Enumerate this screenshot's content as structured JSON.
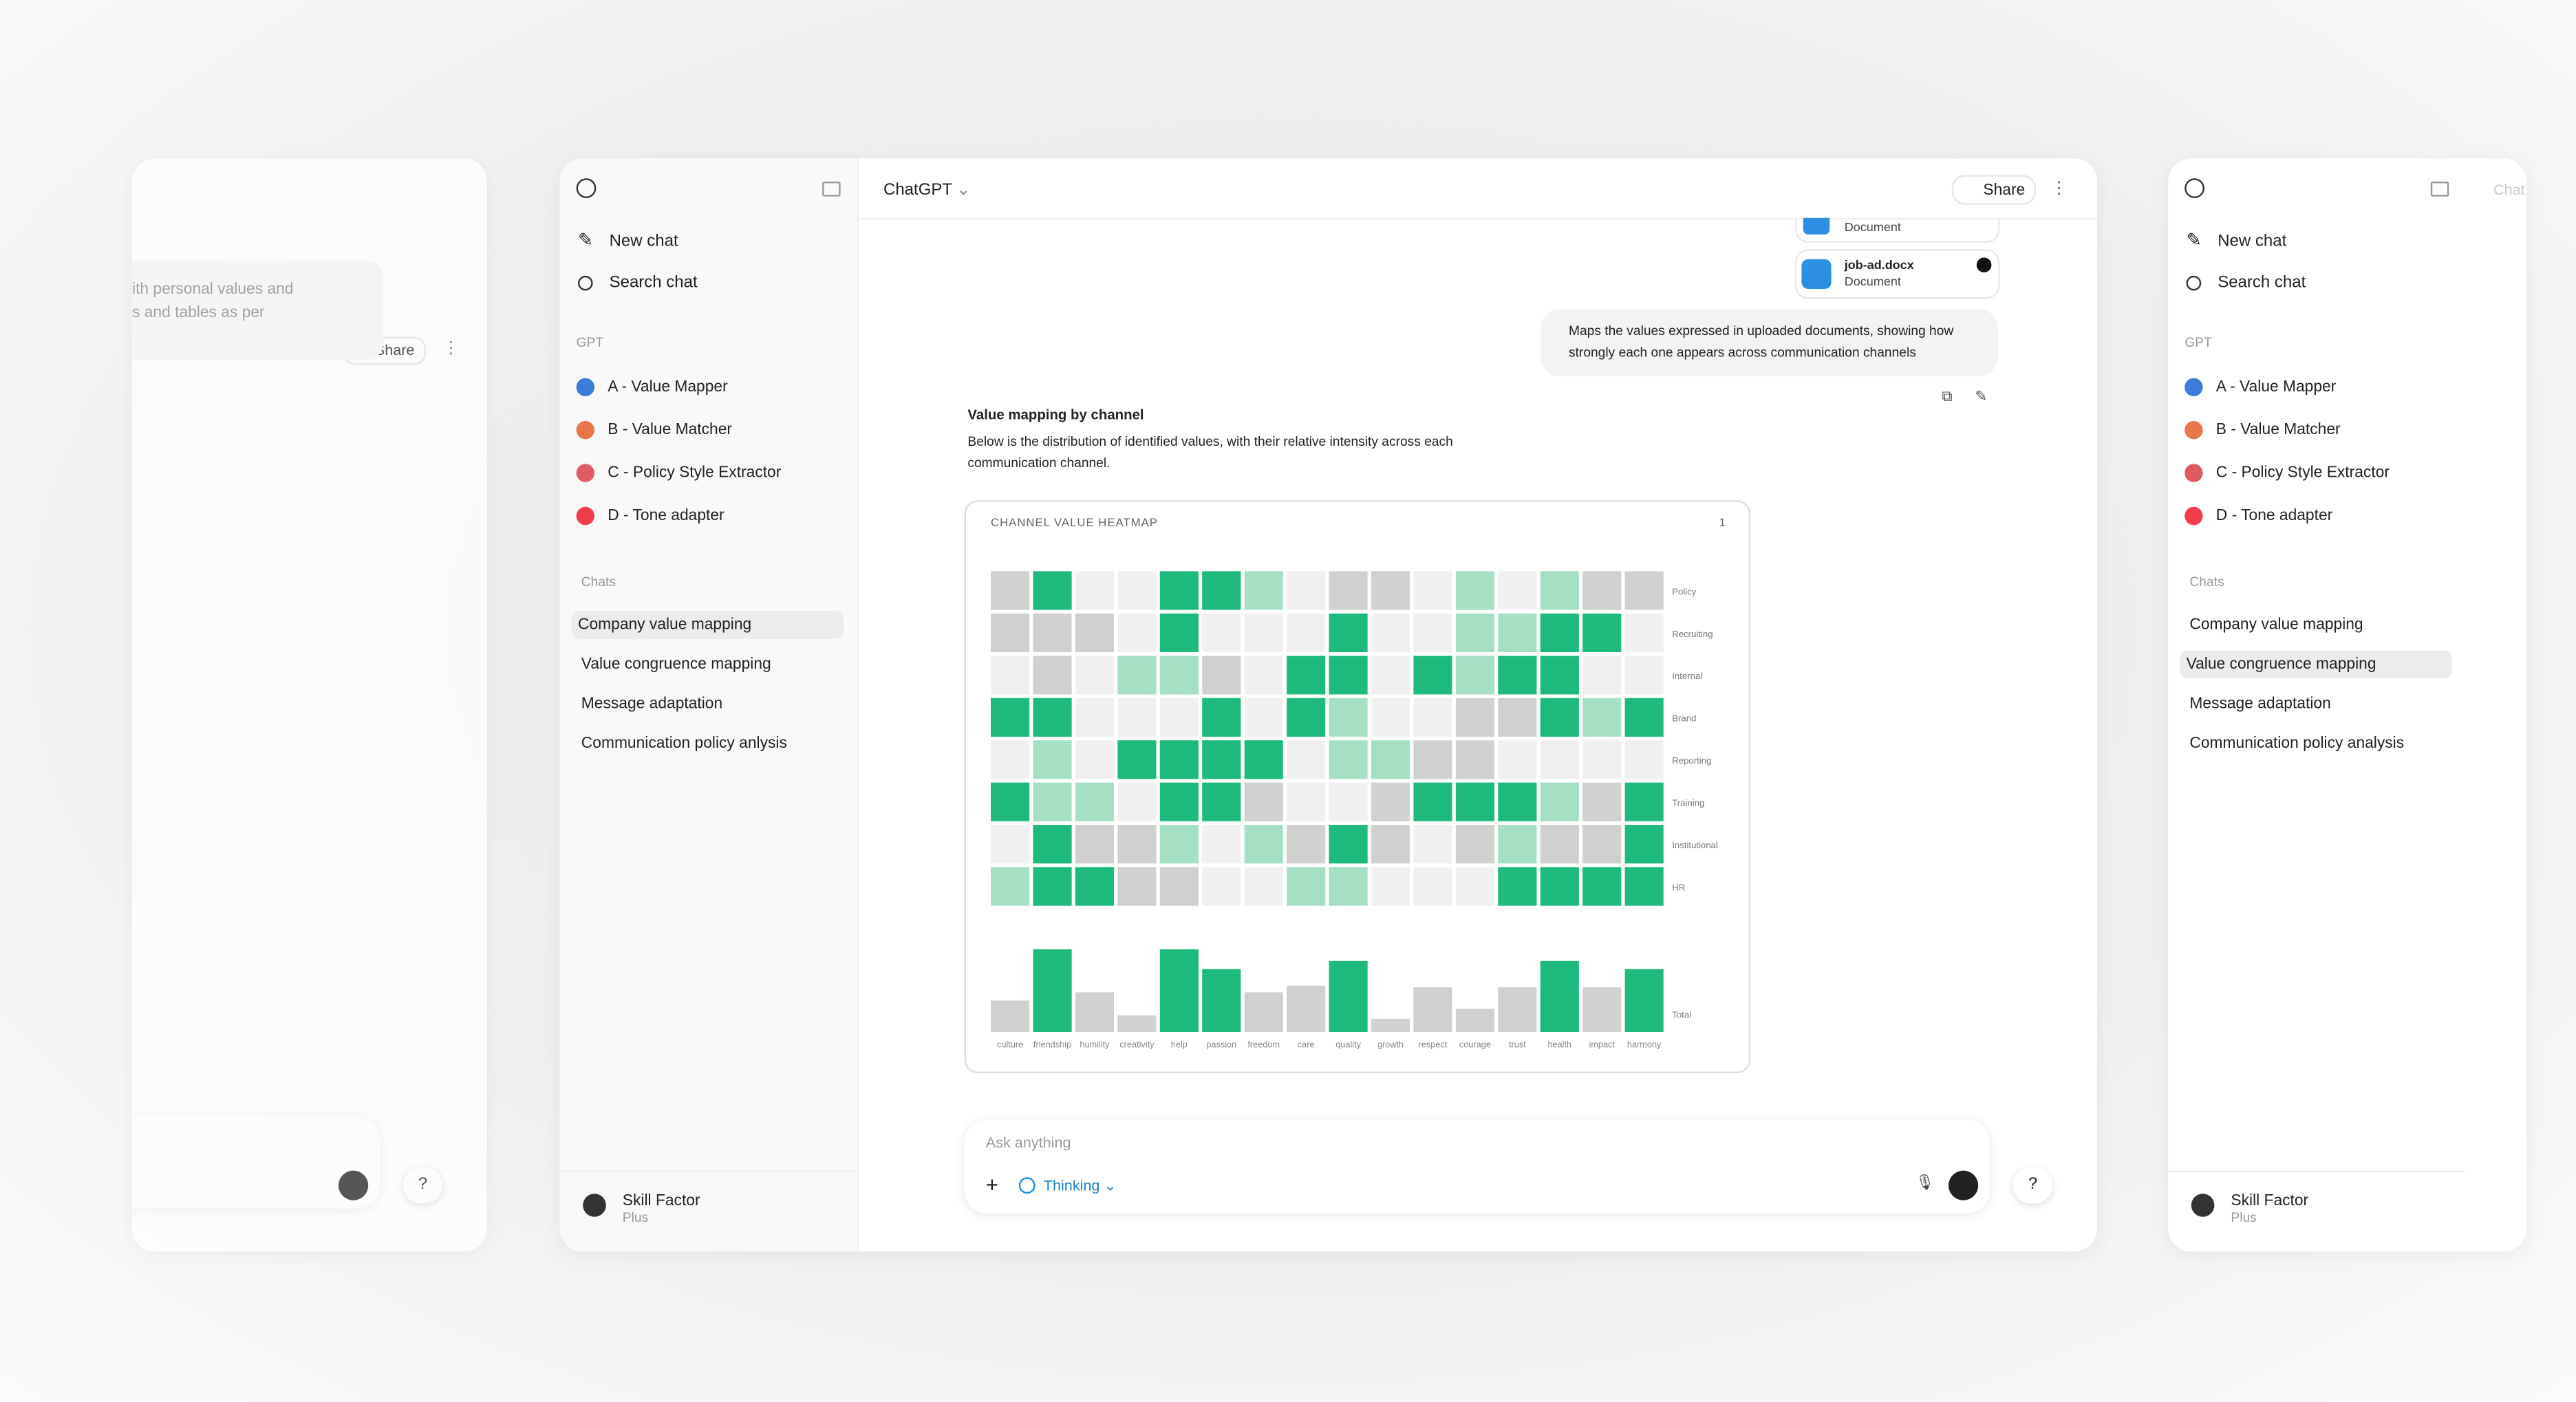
{
  "left_window": {
    "share": "Share",
    "message_lines": [
      "ith personal values and",
      "s and tables as per"
    ],
    "help": "?"
  },
  "main_window": {
    "sidebar": {
      "new_chat": "New chat",
      "search_chat": "Search chat",
      "gpt_heading": "GPT",
      "gpts": [
        {
          "name": "A - Value Mapper",
          "color": "#3b7bd9"
        },
        {
          "name": "B - Value Matcher",
          "color": "#e8764a"
        },
        {
          "name": "C - Policy Style Extractor",
          "color": "#e05a63"
        },
        {
          "name": "D - Tone adapter",
          "color": "#ef3e4a"
        }
      ],
      "chats_heading": "Chats",
      "chats": [
        "Company value mapping",
        "Value congruence mapping",
        "Message adaptation",
        "Communication policy anlysis"
      ],
      "active_chat": 0,
      "user": {
        "name": "Skill Factor",
        "plan": "Plus"
      }
    },
    "header": {
      "model": "ChatGPT",
      "share": "Share"
    },
    "attachments": [
      {
        "type": "Document"
      },
      {
        "name": "job-ad.docx",
        "type": "Document"
      }
    ],
    "user_message": "Maps the values expressed in uploaded documents, showing how strongly each one appears across communication channels",
    "response": {
      "title": "Value mapping by channel",
      "text": "Below is the distribution of identified values, with their relative intensity across each communication channel."
    },
    "chart": {
      "title": "CHANNEL VALUE HEATMAP",
      "badge": "1",
      "rows": [
        "Policy",
        "Recruiting",
        "Internal",
        "Brand",
        "Reporting",
        "Training",
        "Institutional",
        "HR"
      ],
      "columns": [
        "culture",
        "friendship",
        "humility",
        "creativity",
        "help",
        "passion",
        "freedom",
        "care",
        "quality",
        "growth",
        "respect",
        "courage",
        "trust",
        "health",
        "impact",
        "harmony"
      ],
      "level_colors": [
        "#f0f0f0",
        "#cfd1cf",
        "#a5e0c5",
        "#1db97d"
      ],
      "cells": [
        [
          1,
          3,
          0,
          0,
          3,
          3,
          2,
          0,
          1,
          1,
          0,
          2,
          0,
          2,
          1,
          1
        ],
        [
          1,
          1,
          1,
          0,
          3,
          0,
          0,
          0,
          3,
          0,
          0,
          2,
          2,
          3,
          3,
          0
        ],
        [
          0,
          1,
          0,
          2,
          2,
          1,
          0,
          3,
          3,
          0,
          3,
          2,
          3,
          3,
          0,
          0
        ],
        [
          3,
          3,
          0,
          0,
          0,
          3,
          0,
          3,
          2,
          0,
          0,
          1,
          1,
          3,
          2,
          3
        ],
        [
          0,
          2,
          0,
          3,
          3,
          3,
          3,
          0,
          2,
          2,
          1,
          1,
          0,
          0,
          0,
          0
        ],
        [
          3,
          2,
          2,
          0,
          3,
          3,
          1,
          0,
          0,
          1,
          3,
          3,
          3,
          2,
          1,
          3
        ],
        [
          0,
          3,
          1,
          1,
          2,
          0,
          2,
          1,
          3,
          1,
          0,
          1,
          2,
          1,
          1,
          3
        ],
        [
          2,
          3,
          3,
          1,
          1,
          0,
          0,
          2,
          2,
          0,
          0,
          0,
          3,
          3,
          3,
          3
        ]
      ],
      "totals": {
        "label": "Total",
        "values": [
          19,
          50,
          24,
          10,
          50,
          38,
          24,
          28,
          43,
          8,
          27,
          14,
          27,
          43,
          27,
          38
        ],
        "colors": [
          "#cfd1cf",
          "#1db97d",
          "#cfd1cf",
          "#cfd1cf",
          "#1db97d",
          "#1db97d",
          "#cfd1cf",
          "#cfd1cf",
          "#1db97d",
          "#cfd1cf",
          "#cfd1cf",
          "#cfd1cf",
          "#cfd1cf",
          "#1db97d",
          "#cfd1cf",
          "#1db97d"
        ]
      }
    },
    "composer": {
      "placeholder": "Ask anything",
      "mode": "Thinking"
    },
    "help": "?"
  },
  "right_window": {
    "title_fragment": "Chat",
    "sidebar": {
      "new_chat": "New chat",
      "search_chat": "Search chat",
      "gpt_heading": "GPT",
      "gpts": [
        {
          "name": "A - Value Mapper",
          "color": "#3b7bd9"
        },
        {
          "name": "B - Value Matcher",
          "color": "#e8764a"
        },
        {
          "name": "C - Policy Style Extractor",
          "color": "#e05a63"
        },
        {
          "name": "D - Tone adapter",
          "color": "#ef3e4a"
        }
      ],
      "chats_heading": "Chats",
      "chats": [
        "Company value mapping",
        "Value congruence mapping",
        "Message adaptation",
        "Communication policy analysis"
      ],
      "active_chat": 1,
      "user": {
        "name": "Skill Factor",
        "plan": "Plus"
      }
    }
  }
}
